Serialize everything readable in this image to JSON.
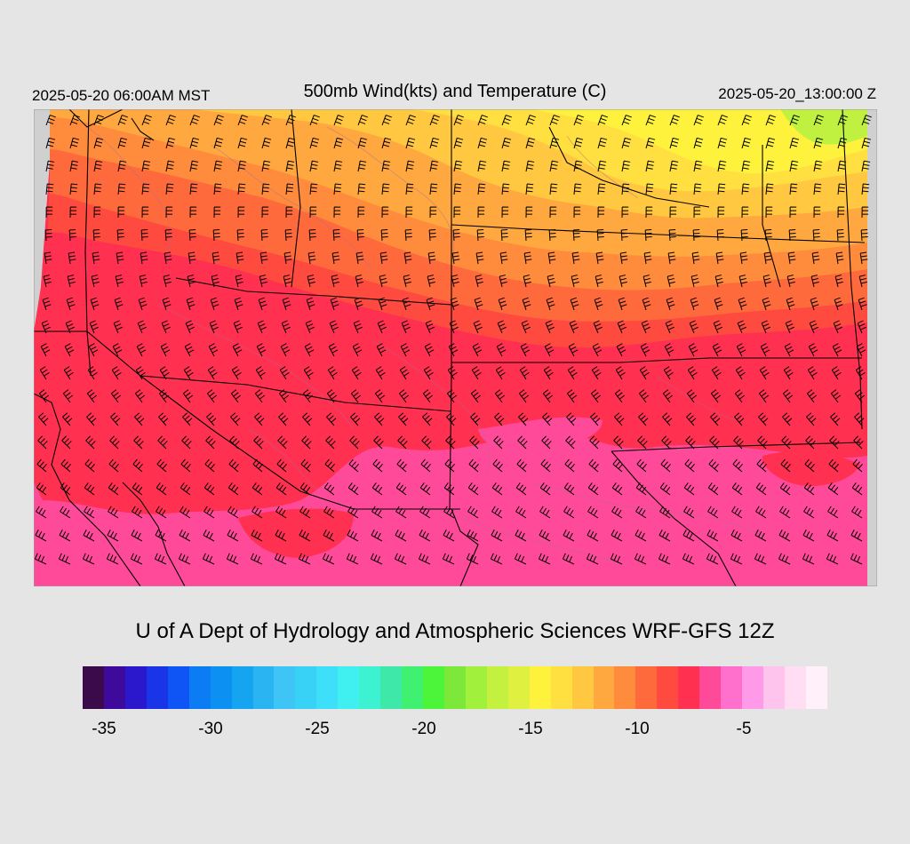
{
  "header": {
    "valid_time": "2025-05-20 06:00AM MST",
    "title": "500mb Wind(kts) and Temperature (C)",
    "init_time": "2025-05-20_13:00:00 Z"
  },
  "footer": {
    "credit": "U of A Dept of Hydrology and Atmospheric Sciences WRF-GFS 12Z"
  },
  "colorbar": {
    "colors": [
      "#3a0a4a",
      "#3d0a9c",
      "#2c18cc",
      "#1a35e8",
      "#0f55f5",
      "#0c7cf5",
      "#0c90f2",
      "#14a4f0",
      "#2bb4f2",
      "#3ec4f5",
      "#38d2f7",
      "#3de0f8",
      "#40f0f0",
      "#3cf2d0",
      "#3de8a8",
      "#40f070",
      "#4cf53a",
      "#7de83a",
      "#a0f03c",
      "#c4f040",
      "#e0f040",
      "#fff23c",
      "#ffe040",
      "#ffc840",
      "#ffa840",
      "#ff8c3c",
      "#ff6a3c",
      "#ff4a40",
      "#ff3050",
      "#ff4a9a",
      "#ff70cc",
      "#ff9ae8",
      "#ffc4ee",
      "#ffdef4",
      "#fff0fa"
    ],
    "tick_labels": [
      "-35",
      "-30",
      "-25",
      "-20",
      "-15",
      "-10",
      "-5"
    ]
  },
  "map": {
    "field": "500mb temperature (C)",
    "band_colors": [
      "#c0f040",
      "#fff23c",
      "#ffe040",
      "#ffc840",
      "#ffa840",
      "#ff8c3c",
      "#ff6a3c",
      "#ff4a40",
      "#ff3050",
      "#ff4a9a"
    ],
    "outside_color": "#d0d0d0"
  }
}
